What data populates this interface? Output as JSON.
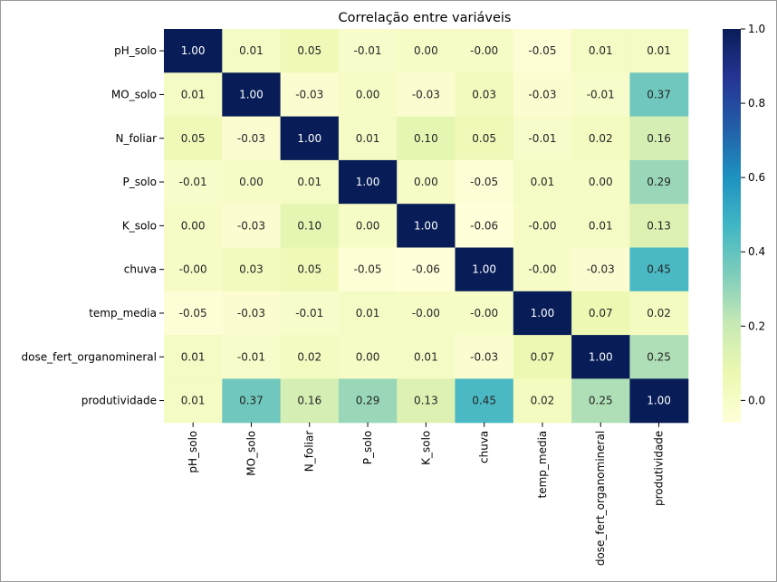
{
  "chart_data": {
    "type": "heatmap",
    "title": "Correlação entre variáveis",
    "rows": [
      "pH_solo",
      "MO_solo",
      "N_foliar",
      "P_solo",
      "K_solo",
      "chuva",
      "temp_media",
      "dose_fert_organomineral",
      "produtividade"
    ],
    "columns": [
      "pH_solo",
      "MO_solo",
      "N_foliar",
      "P_solo",
      "K_solo",
      "chuva",
      "temp_media",
      "dose_fert_organomineral",
      "produtividade"
    ],
    "values": [
      [
        1.0,
        0.01,
        0.05,
        -0.01,
        0.0,
        -0.0,
        -0.05,
        0.01,
        0.01
      ],
      [
        0.01,
        1.0,
        -0.03,
        0.0,
        -0.03,
        0.03,
        -0.03,
        -0.01,
        0.37
      ],
      [
        0.05,
        -0.03,
        1.0,
        0.01,
        0.1,
        0.05,
        -0.01,
        0.02,
        0.16
      ],
      [
        -0.01,
        0.0,
        0.01,
        1.0,
        0.0,
        -0.05,
        0.01,
        0.0,
        0.29
      ],
      [
        0.0,
        -0.03,
        0.1,
        0.0,
        1.0,
        -0.06,
        -0.0,
        0.01,
        0.13
      ],
      [
        -0.0,
        0.03,
        0.05,
        -0.05,
        -0.06,
        1.0,
        -0.0,
        -0.03,
        0.45
      ],
      [
        -0.05,
        -0.03,
        -0.01,
        0.01,
        -0.0,
        -0.0,
        1.0,
        0.07,
        0.02
      ],
      [
        0.01,
        -0.01,
        0.02,
        0.0,
        0.01,
        -0.03,
        0.07,
        1.0,
        0.25
      ],
      [
        0.01,
        0.37,
        0.16,
        0.29,
        0.13,
        0.45,
        0.02,
        0.25,
        1.0
      ]
    ],
    "cell_labels": [
      [
        "1.00",
        "0.01",
        "0.05",
        "-0.01",
        "0.00",
        "-0.00",
        "-0.05",
        "0.01",
        "0.01"
      ],
      [
        "0.01",
        "1.00",
        "-0.03",
        "0.00",
        "-0.03",
        "0.03",
        "-0.03",
        "-0.01",
        "0.37"
      ],
      [
        "0.05",
        "-0.03",
        "1.00",
        "0.01",
        "0.10",
        "0.05",
        "-0.01",
        "0.02",
        "0.16"
      ],
      [
        "-0.01",
        "0.00",
        "0.01",
        "1.00",
        "0.00",
        "-0.05",
        "0.01",
        "0.00",
        "0.29"
      ],
      [
        "0.00",
        "-0.03",
        "0.10",
        "0.00",
        "1.00",
        "-0.06",
        "-0.00",
        "0.01",
        "0.13"
      ],
      [
        "-0.00",
        "0.03",
        "0.05",
        "-0.05",
        "-0.06",
        "1.00",
        "-0.00",
        "-0.03",
        "0.45"
      ],
      [
        "-0.05",
        "-0.03",
        "-0.01",
        "0.01",
        "-0.00",
        "-0.00",
        "1.00",
        "0.07",
        "0.02"
      ],
      [
        "0.01",
        "-0.01",
        "0.02",
        "0.00",
        "0.01",
        "-0.03",
        "0.07",
        "1.00",
        "0.25"
      ],
      [
        "0.01",
        "0.37",
        "0.16",
        "0.29",
        "0.13",
        "0.45",
        "0.02",
        "0.25",
        "1.00"
      ]
    ],
    "colormap": "YlGnBu",
    "colorbar": {
      "vmin": -0.06,
      "vmax": 1.0,
      "ticks": [
        0.0,
        0.2,
        0.4,
        0.6,
        0.8,
        1.0
      ],
      "tick_labels": [
        "0.0",
        "0.2",
        "0.4",
        "0.6",
        "0.8",
        "1.0"
      ]
    },
    "legend_position": "right"
  }
}
